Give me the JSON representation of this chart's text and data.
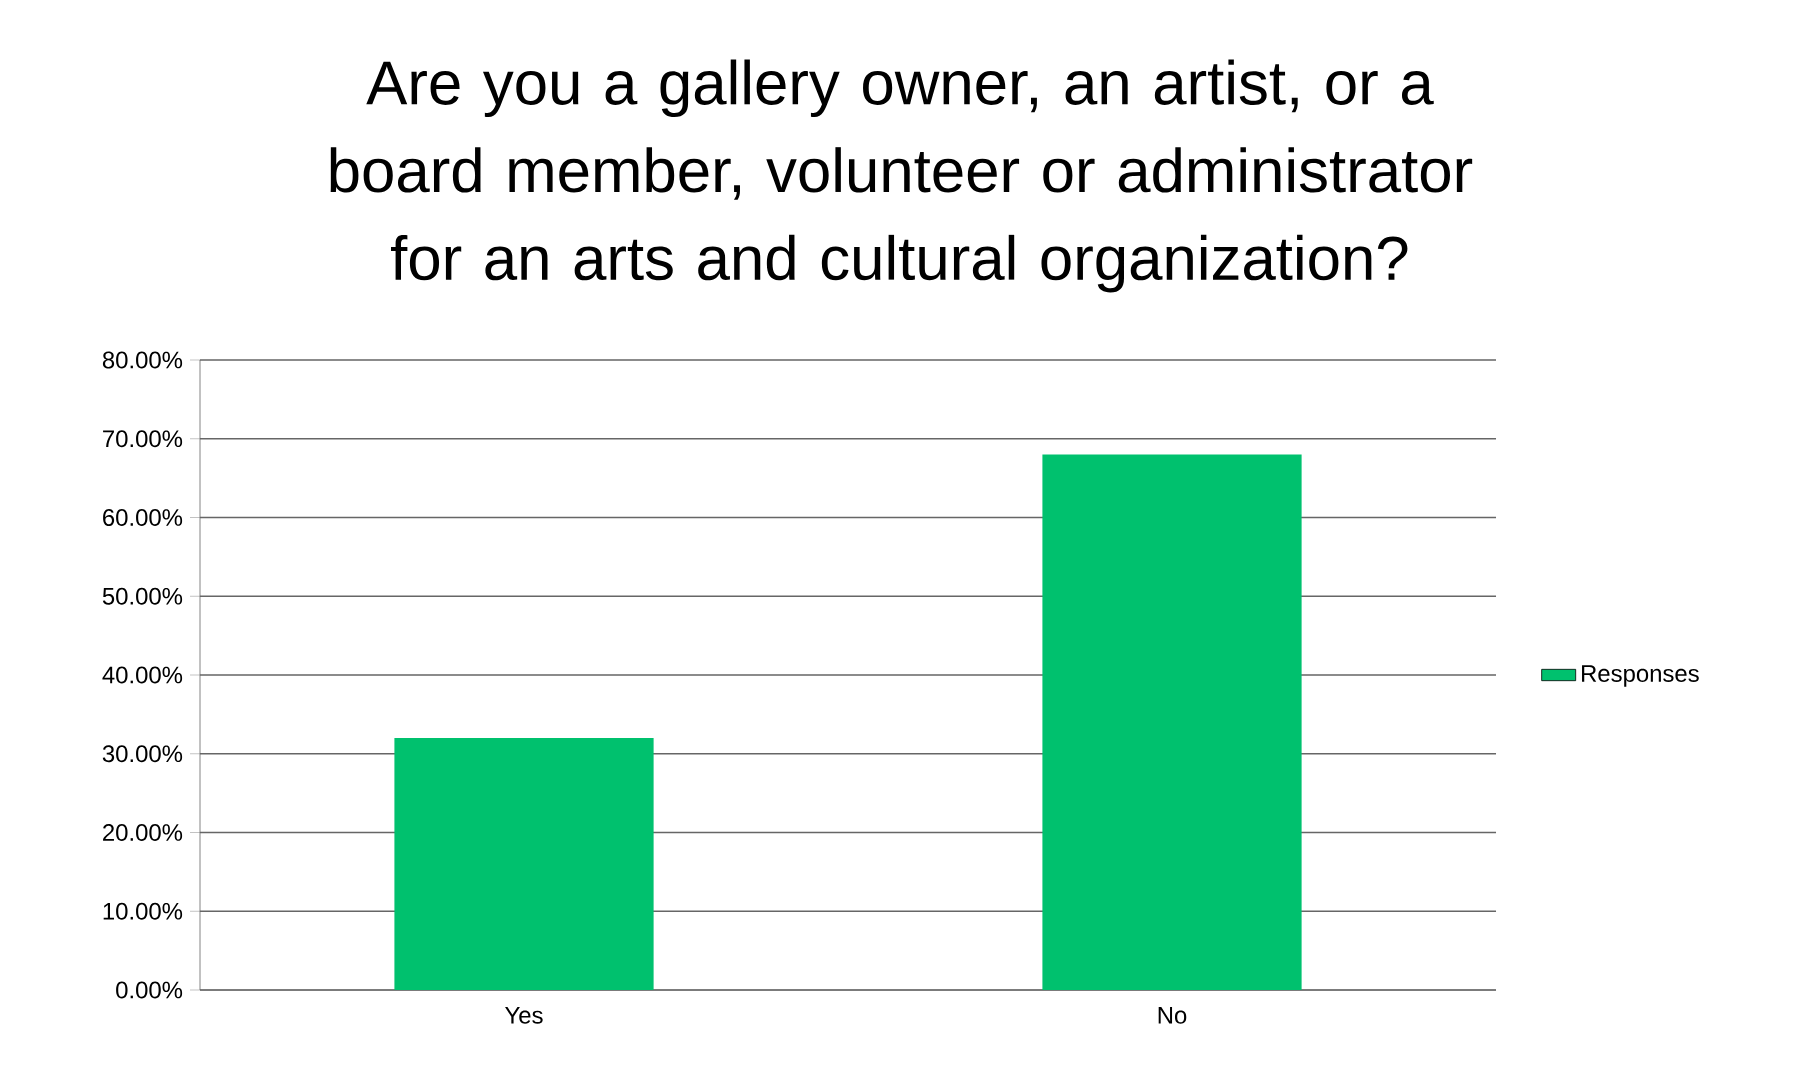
{
  "chart_data": {
    "type": "bar",
    "title": "Are you a gallery owner, an artist, or a board member, volunteer or administrator for an arts and cultural organization?",
    "categories": [
      "Yes",
      "No"
    ],
    "series": [
      {
        "name": "Responses",
        "color": "#00c16e",
        "values": [
          32,
          68
        ]
      }
    ],
    "ylim": [
      0,
      80
    ],
    "yticks": [
      {
        "value": 0,
        "label": "0.00%"
      },
      {
        "value": 10,
        "label": "10.00%"
      },
      {
        "value": 20,
        "label": "20.00%"
      },
      {
        "value": 30,
        "label": "30.00%"
      },
      {
        "value": 40,
        "label": "40.00%"
      },
      {
        "value": 50,
        "label": "50.00%"
      },
      {
        "value": 60,
        "label": "60.00%"
      },
      {
        "value": 70,
        "label": "70.00%"
      },
      {
        "value": 80,
        "label": "80.00%"
      }
    ],
    "grid": "y",
    "legend": "right"
  }
}
